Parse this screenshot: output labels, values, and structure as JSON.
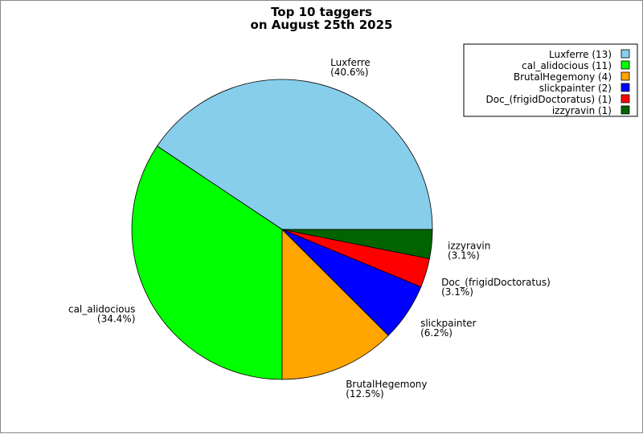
{
  "chart_data": {
    "type": "pie",
    "title_line1": "Top 10 taggers",
    "title_line2": "on August 25th 2025",
    "slices": [
      {
        "name": "Luxferre",
        "count": 13,
        "percent": "40.6%",
        "legend": "Luxferre (13)",
        "color": "#87ceeb"
      },
      {
        "name": "cal_alidocious",
        "count": 11,
        "percent": "34.4%",
        "legend": "cal_alidocious (11)",
        "color": "#00ff00"
      },
      {
        "name": "BrutalHegemony",
        "count": 4,
        "percent": "12.5%",
        "legend": "BrutalHegemony (4)",
        "color": "#ffa500"
      },
      {
        "name": "slickpainter",
        "count": 2,
        "percent": "6.2%",
        "legend": "slickpainter (2)",
        "color": "#0000ff"
      },
      {
        "name": "Doc_(frigidDoctoratus)",
        "count": 1,
        "percent": "3.1%",
        "legend": "Doc_(frigidDoctoratus) (1)",
        "color": "#ff0000"
      },
      {
        "name": "izzyravin",
        "count": 1,
        "percent": "3.1%",
        "legend": "izzyravin (1)",
        "color": "#006400"
      }
    ],
    "legend_position": "top-right"
  }
}
